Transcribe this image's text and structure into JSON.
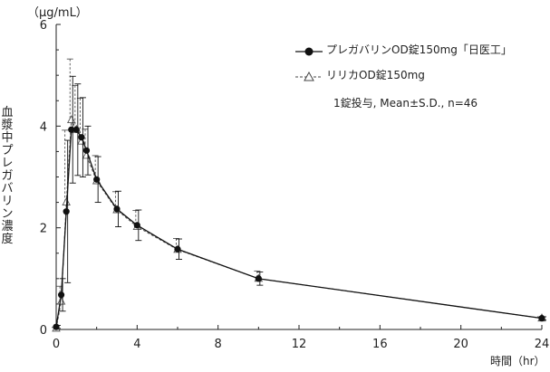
{
  "chart_data": {
    "type": "line",
    "y_unit": "（μg/mL）",
    "ylabel": "血漿中プレガバリン濃度",
    "xlabel": "時間（hr）",
    "xlim": [
      0,
      24
    ],
    "ylim": [
      0,
      6
    ],
    "x_ticks": [
      0,
      4,
      8,
      12,
      16,
      20,
      24
    ],
    "y_ticks": [
      0,
      2,
      4,
      6
    ],
    "annotation": "1錠投与, Mean±S.D., n=46",
    "legend_placement": "top-right",
    "x": [
      0,
      0.25,
      0.5,
      0.75,
      1,
      1.25,
      1.5,
      2,
      3,
      4,
      6,
      10,
      24
    ],
    "series": [
      {
        "name": "プレガバリンOD錠150mg「日医工」",
        "marker": "filled-circle",
        "line_style": "solid",
        "color": "#111111",
        "values": [
          0.05,
          0.68,
          2.32,
          3.93,
          3.93,
          3.78,
          3.52,
          2.95,
          2.37,
          2.05,
          1.58,
          1.0,
          0.22
        ],
        "sd": [
          0.03,
          0.32,
          1.4,
          1.05,
          0.9,
          0.78,
          0.48,
          0.45,
          0.35,
          0.3,
          0.2,
          0.13,
          0.03
        ]
      },
      {
        "name": "リリカOD錠150mg",
        "marker": "open-triangle",
        "line_style": "dashed",
        "color": "#555555",
        "values": [
          0.02,
          0.55,
          2.5,
          4.12,
          3.93,
          3.7,
          3.42,
          2.92,
          2.35,
          2.02,
          1.57,
          1.0,
          0.22
        ],
        "sd": [
          0.02,
          0.3,
          1.42,
          1.2,
          0.87,
          0.85,
          0.52,
          0.5,
          0.36,
          0.32,
          0.22,
          0.15,
          0.03
        ]
      }
    ]
  }
}
